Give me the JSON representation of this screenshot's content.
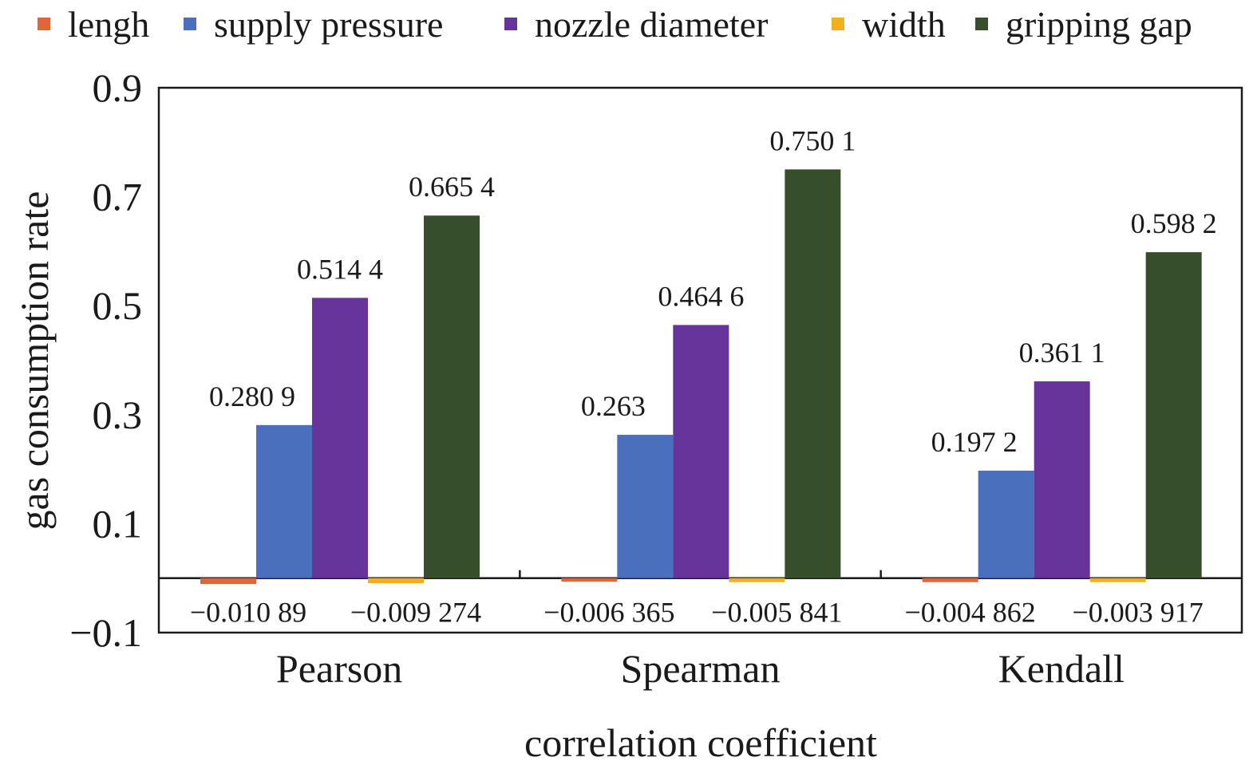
{
  "chart_data": {
    "type": "bar",
    "title": "",
    "xlabel": "correlation coefficient",
    "ylabel": "gas consumption rate",
    "ylim": [
      -0.1,
      0.9
    ],
    "yticks": [
      -0.1,
      0.1,
      0.3,
      0.5,
      0.7,
      0.9
    ],
    "ytick_labels": [
      "−0.1",
      "0.1",
      "0.3",
      "0.5",
      "0.7",
      "0.9"
    ],
    "grid": false,
    "legend_position": "top",
    "categories": [
      "Pearson",
      "Spearman",
      "Kendall"
    ],
    "series": [
      {
        "name": "lengh",
        "color": "#e0653a",
        "values": [
          -0.01089,
          -0.006365,
          -0.004862
        ],
        "labels": [
          "−0.010 89",
          "−0.006 365",
          "−0.004 862"
        ]
      },
      {
        "name": "supply pressure",
        "color": "#4a6fbd",
        "values": [
          0.2809,
          0.263,
          0.1972
        ],
        "labels": [
          "0.280 9",
          "0.263",
          "0.197 2"
        ]
      },
      {
        "name": "nozzle diameter",
        "color": "#65339a",
        "values": [
          0.5144,
          0.4646,
          0.3611
        ],
        "labels": [
          "0.514 4",
          "0.464 6",
          "0.361 1"
        ]
      },
      {
        "name": "width",
        "color": "#f2b01e",
        "values": [
          -0.009274,
          -0.005841,
          -0.003917
        ],
        "labels": [
          "−0.009 274",
          "−0.005 841",
          "−0.003 917"
        ]
      },
      {
        "name": "gripping gap",
        "color": "#364f2a",
        "values": [
          0.6654,
          0.7501,
          0.5982
        ],
        "labels": [
          "0.665 4",
          "0.750 1",
          "0.598 2"
        ]
      }
    ]
  }
}
